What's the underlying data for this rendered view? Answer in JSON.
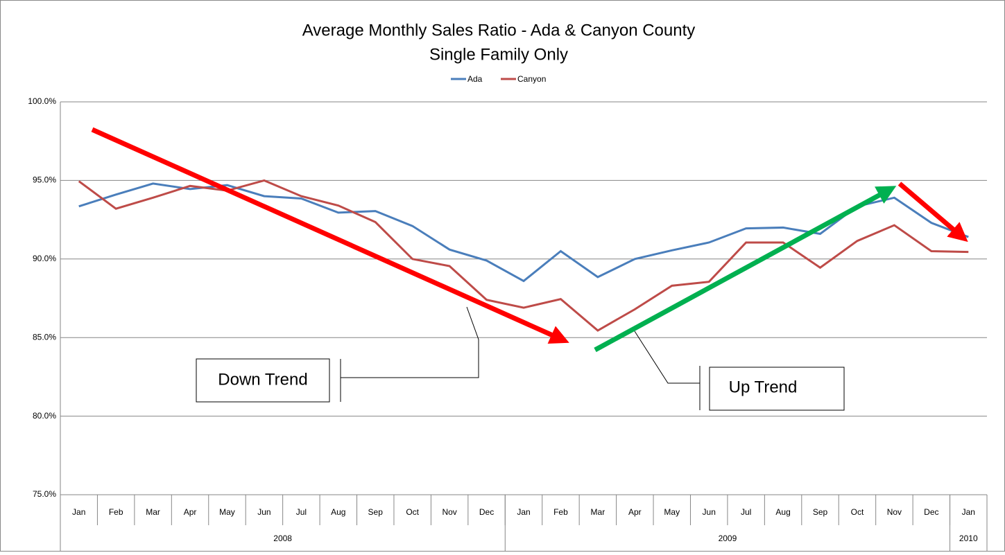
{
  "chart_data": {
    "type": "line",
    "title": "Average Monthly Sales Ratio - Ada &  Canyon County",
    "subtitle": "Single Family Only",
    "categories": [
      "Jan",
      "Feb",
      "Mar",
      "Apr",
      "May",
      "Jun",
      "Jul",
      "Aug",
      "Sep",
      "Oct",
      "Nov",
      "Dec",
      "Jan",
      "Feb",
      "Mar",
      "Apr",
      "May",
      "Jun",
      "Jul",
      "Aug",
      "Sep",
      "Oct",
      "Nov",
      "Dec",
      "Jan"
    ],
    "groups": [
      {
        "label": "2008",
        "span": 12
      },
      {
        "label": "2009",
        "span": 12
      },
      {
        "label": "2010",
        "span": 1
      }
    ],
    "series": [
      {
        "name": "Ada",
        "color": "#4a7ebb",
        "values": [
          93.35,
          94.1,
          94.8,
          94.45,
          94.7,
          94.0,
          93.85,
          92.95,
          93.05,
          92.1,
          90.6,
          89.9,
          88.6,
          90.5,
          88.85,
          90.0,
          90.55,
          91.05,
          91.95,
          92.0,
          91.6,
          93.35,
          93.9,
          92.3,
          91.4
        ]
      },
      {
        "name": "Canyon",
        "color": "#be4b48",
        "values": [
          94.95,
          93.2,
          93.9,
          94.65,
          94.35,
          95.0,
          94.0,
          93.4,
          92.35,
          90.0,
          89.55,
          87.4,
          86.9,
          87.45,
          85.45,
          86.8,
          88.3,
          88.55,
          91.05,
          91.05,
          89.45,
          91.15,
          92.15,
          90.5,
          90.45
        ]
      }
    ],
    "ylim": [
      75,
      100
    ],
    "yticks": [
      {
        "value": 75,
        "label": "75.0%"
      },
      {
        "value": 80,
        "label": "80.0%"
      },
      {
        "value": 85,
        "label": "85.0%"
      },
      {
        "value": 90,
        "label": "90.0%"
      },
      {
        "value": 95,
        "label": "95.0%"
      },
      {
        "value": 100,
        "label": "100.0%"
      }
    ],
    "grid": true,
    "legend": "top",
    "annotations": [
      "Down Trend",
      "Up Trend"
    ]
  }
}
